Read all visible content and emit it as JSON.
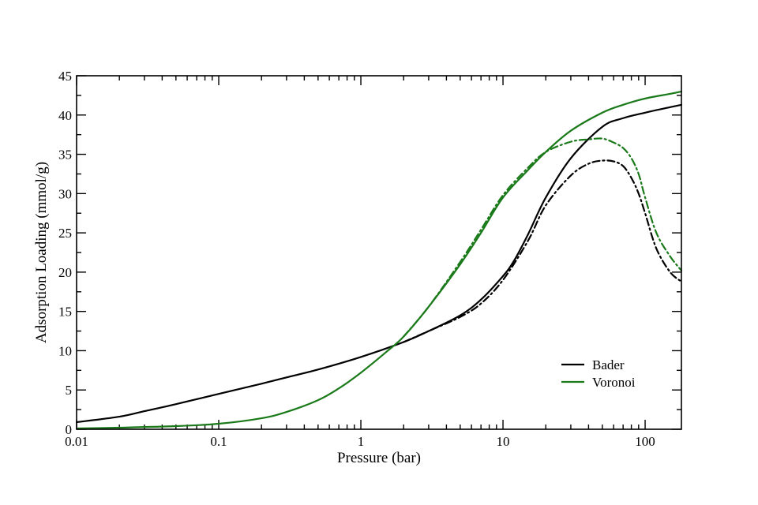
{
  "chart_data": {
    "type": "line",
    "xlabel": "Pressure (bar)",
    "ylabel": "Adsorption Loading (mmol/g)",
    "xscale": "log",
    "xlim": [
      0.01,
      180
    ],
    "ylim": [
      0,
      45
    ],
    "x_ticks": [
      "0.01",
      "0.1",
      "1",
      "10",
      "100"
    ],
    "y_ticks": [
      "0",
      "5",
      "10",
      "15",
      "20",
      "25",
      "30",
      "35",
      "40",
      "45"
    ],
    "legend_position": "bottom-right",
    "legend": [
      {
        "name": "Bader",
        "color": "#000000"
      },
      {
        "name": "Voronoi",
        "color": "#1a7a1a"
      }
    ],
    "series": [
      {
        "name": "Bader",
        "style": "solid",
        "color": "#000000",
        "x": [
          0.01,
          0.02,
          0.03,
          0.05,
          0.1,
          0.2,
          0.3,
          0.5,
          1,
          2,
          3,
          5,
          7,
          10,
          12,
          15,
          20,
          30,
          50,
          70,
          100,
          150,
          180
        ],
        "y": [
          0.9,
          1.6,
          2.3,
          3.2,
          4.5,
          5.8,
          6.6,
          7.6,
          9.2,
          11.1,
          12.5,
          14.5,
          16.5,
          19.5,
          21.5,
          24.8,
          29.5,
          34.5,
          38.5,
          39.6,
          40.3,
          41.0,
          41.3
        ]
      },
      {
        "name": "Voronoi",
        "style": "solid",
        "color": "#1a7a1a",
        "x": [
          0.01,
          0.02,
          0.05,
          0.1,
          0.2,
          0.3,
          0.5,
          0.7,
          1,
          1.5,
          2,
          3,
          5,
          7,
          10,
          15,
          20,
          30,
          50,
          70,
          100,
          150,
          180
        ],
        "y": [
          0.1,
          0.2,
          0.4,
          0.7,
          1.4,
          2.2,
          3.7,
          5.2,
          7.2,
          9.8,
          11.8,
          15.6,
          21.0,
          25.0,
          29.5,
          33.0,
          35.3,
          38.0,
          40.3,
          41.3,
          42.1,
          42.7,
          43.0
        ]
      },
      {
        "name": "",
        "style": "dash-dot",
        "color": "#000000",
        "x": [
          2,
          3,
          5,
          7,
          10,
          15,
          20,
          30,
          40,
          50,
          60,
          70,
          80,
          90,
          100,
          120,
          150,
          180
        ],
        "y": [
          11.1,
          12.5,
          14.3,
          16.0,
          19.0,
          24.0,
          28.5,
          32.3,
          33.8,
          34.2,
          34.1,
          33.5,
          32.0,
          30.0,
          27.5,
          23.0,
          20.0,
          18.8
        ]
      },
      {
        "name": "",
        "style": "dash-dot",
        "color": "#1a7a1a",
        "x": [
          2,
          3,
          5,
          7,
          10,
          15,
          20,
          30,
          40,
          50,
          60,
          70,
          80,
          90,
          100,
          120,
          150,
          180
        ],
        "y": [
          11.8,
          15.6,
          21.3,
          25.4,
          29.8,
          33.3,
          35.3,
          36.6,
          36.9,
          37.0,
          36.5,
          35.8,
          34.5,
          32.5,
          29.5,
          25.0,
          22.0,
          20.2
        ]
      }
    ]
  }
}
